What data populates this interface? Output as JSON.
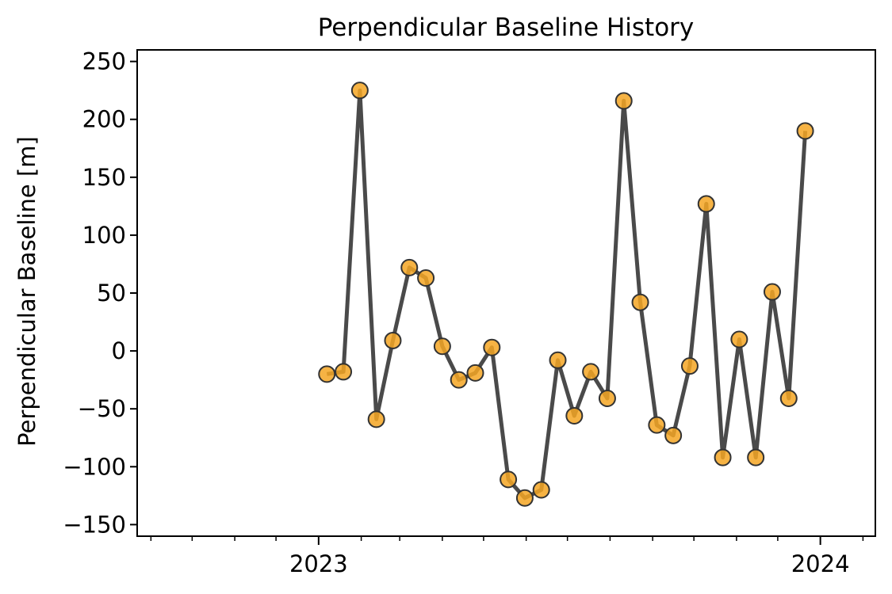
{
  "chart_data": {
    "type": "line",
    "title": "Perpendicular Baseline History",
    "xlabel": "",
    "ylabel": "Perpendicular Baseline [m]",
    "ylim": [
      -160,
      260
    ],
    "xlim": [
      "2022-08-22",
      "2024-02-10"
    ],
    "grid": false,
    "y_ticks": [
      250,
      200,
      150,
      100,
      50,
      0,
      -50,
      -100,
      -150
    ],
    "y_tick_labels": [
      "250",
      "200",
      "150",
      "100",
      "50",
      "0",
      "−50",
      "−100",
      "−150"
    ],
    "x_major_ticks": [
      {
        "date": "2023-01-01",
        "label": "2023"
      },
      {
        "date": "2024-01-01",
        "label": "2024"
      }
    ],
    "x_minor_ticks": [
      "2022-09-01",
      "2022-10-01",
      "2022-11-01",
      "2022-12-01",
      "2023-02-01",
      "2023-03-01",
      "2023-04-01",
      "2023-05-01",
      "2023-06-01",
      "2023-07-01",
      "2023-08-01",
      "2023-09-01",
      "2023-10-01",
      "2023-11-01",
      "2023-12-01",
      "2024-02-01"
    ],
    "series": [
      {
        "line_color": "#4a4a4a",
        "marker_color": "#f5a623",
        "x": [
          "2023-01-07",
          "2023-01-19",
          "2023-01-31",
          "2023-02-12",
          "2023-02-24",
          "2023-03-08",
          "2023-03-20",
          "2023-04-01",
          "2023-04-13",
          "2023-04-25",
          "2023-05-07",
          "2023-05-19",
          "2023-05-31",
          "2023-06-12",
          "2023-06-24",
          "2023-07-06",
          "2023-07-18",
          "2023-07-30",
          "2023-08-11",
          "2023-08-23",
          "2023-09-04",
          "2023-09-16",
          "2023-09-28",
          "2023-10-10",
          "2023-10-22",
          "2023-11-03",
          "2023-11-15",
          "2023-11-27",
          "2023-12-09",
          "2023-12-21"
        ],
        "values": [
          -20,
          -18,
          225,
          -59,
          9,
          72,
          63,
          4,
          -25,
          -19,
          3,
          -111,
          -127,
          -120,
          -8,
          -56,
          -18,
          -41,
          216,
          42,
          -64,
          -73,
          -13,
          127,
          -92,
          10,
          -92,
          51,
          -41,
          190
        ]
      }
    ]
  }
}
